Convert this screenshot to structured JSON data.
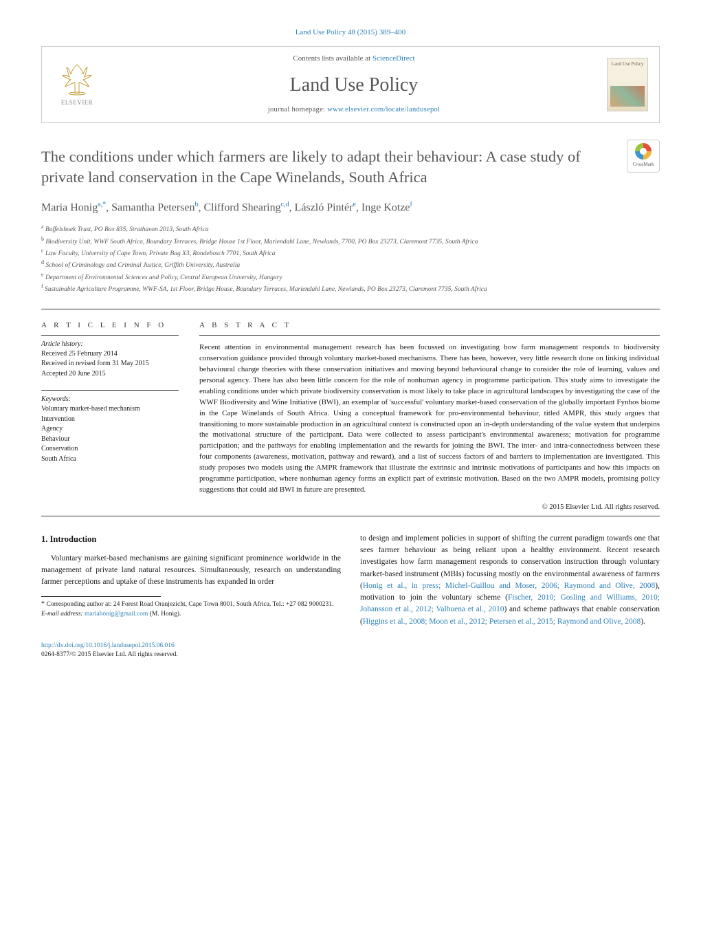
{
  "citation": "Land Use Policy 48 (2015) 389–400",
  "header": {
    "contents_prefix": "Contents lists available at ",
    "contents_link": "ScienceDirect",
    "journal_name": "Land Use Policy",
    "homepage_prefix": "journal homepage: ",
    "homepage_link": "www.elsevier.com/locate/landusepol",
    "publisher_name": "ELSEVIER",
    "cover_title": "Land Use Policy"
  },
  "crossmark_label": "CrossMark",
  "title": "The conditions under which farmers are likely to adapt their behaviour: A case study of private land conservation in the Cape Winelands, South Africa",
  "authors_html": "Maria Honig<sup>a,*</sup>, Samantha Petersen<sup>b</sup>, Clifford Shearing<sup>c,d</sup>, László Pintér<sup>e</sup>, Inge Kotze<sup>f</sup>",
  "affiliations": [
    "Buffelshoek Trust, PO Box 835, Strathavon 2013, South Africa",
    "Biodiversity Unit, WWF South Africa, Boundary Terraces, Bridge House 1st Floor, Mariendahl Lane, Newlands, 7700, PO Box 23273, Claremont 7735, South Africa",
    "Law Faculty, University of Cape Town, Private Bag X3, Rondebosch 7701, South Africa",
    "School of Criminology and Criminal Justice, Griffith University, Australia",
    "Department of Environmental Sciences and Policy, Central European University, Hungary",
    "Sustainable Agriculture Programme, WWF-SA, 1st Floor, Bridge House, Boundary Terraces, Mariendahl Lane, Newlands, PO Box 23273, Claremont 7735, South Africa"
  ],
  "aff_letters": [
    "a",
    "b",
    "c",
    "d",
    "e",
    "f"
  ],
  "article_info": {
    "heading": "a r t i c l e   i n f o",
    "history_label": "Article history:",
    "received": "Received 25 February 2014",
    "revised": "Received in revised form 31 May 2015",
    "accepted": "Accepted 20 June 2015",
    "keywords_label": "Keywords:",
    "keywords": [
      "Voluntary market-based mechanism",
      "Intervention",
      "Agency",
      "Behaviour",
      "Conservation",
      "South Africa"
    ]
  },
  "abstract": {
    "heading": "a b s t r a c t",
    "text": "Recent attention in environmental management research has been focussed on investigating how farm management responds to biodiversity conservation guidance provided through voluntary market-based mechanisms. There has been, however, very little research done on linking individual behavioural change theories with these conservation initiatives and moving beyond behavioural change to consider the role of learning, values and personal agency. There has also been little concern for the role of nonhuman agency in programme participation. This study aims to investigate the enabling conditions under which private biodiversity conservation is most likely to take place in agricultural landscapes by investigating the case of the WWF Biodiversity and Wine Initiative (BWI), an exemplar of 'successful' voluntary market-based conservation of the globally important Fynbos biome in the Cape Winelands of South Africa. Using a conceptual framework for pro-environmental behaviour, titled AMPR, this study argues that transitioning to more sustainable production in an agricultural context is constructed upon an in-depth understanding of the value system that underpins the motivational structure of the participant. Data were collected to assess participant's environmental awareness; motivation for programme participation; and the pathways for enabling implementation and the rewards for joining the BWI. The inter- and intra-connectedness between these four components (awareness, motivation, pathway and reward), and a list of success factors of and barriers to implementation are investigated. This study proposes two models using the AMPR framework that illustrate the extrinsic and intrinsic motivations of participants and how this impacts on programme participation, where nonhuman agency forms an explicit part of extrinsic motivation. Based on the two AMPR models, promising policy suggestions that could aid BWI in future are presented.",
    "copyright": "© 2015 Elsevier Ltd. All rights reserved."
  },
  "intro": {
    "heading": "1. Introduction",
    "para1_plain": "Voluntary market-based mechanisms are gaining significant prominence worldwide in the management of private land natural resources. Simultaneously, research on understanding farmer perceptions and uptake of these instruments has expanded in order",
    "para2_prefix": "to design and implement policies in support of shifting the current paradigm towards one that sees farmer behaviour as being reliant upon a healthy environment. Recent research investigates how farm management responds to conservation instruction through voluntary market-based instrument (MBIs) focussing mostly on the environmental awareness of farmers (",
    "refs1": "Honig et al., in press; Michel-Guillou and Moser, 2006; Raymond and Olive, 2008",
    "mid1": "), motivation to join the voluntary scheme (",
    "refs2": "Fischer, 2010; Gosling and Williams, 2010; Johansson et al., 2012; Valbuena et al., 2010",
    "mid2": ") and scheme pathways that enable conservation (",
    "refs3": "Higgins et al., 2008; Moon et al., 2012; Petersen et al., 2015; Raymond and Olive, 2008",
    "end": ")."
  },
  "footnote": {
    "corresponding": "Corresponding author at: 24 Forest Road Oranjezicht, Cape Town 8001, South Africa. Tel.: +27 082 9000231.",
    "email_label": "E-mail address:",
    "email": "mariahonig@gmail.com",
    "email_who": "(M. Honig)."
  },
  "footer": {
    "doi": "http://dx.doi.org/10.1016/j.landusepol.2015.06.016",
    "issn_line": "0264-8377/© 2015 Elsevier Ltd. All rights reserved."
  },
  "colors": {
    "link": "#2a7fb8",
    "text": "#1a1a1a",
    "heading_gray": "#575757"
  }
}
